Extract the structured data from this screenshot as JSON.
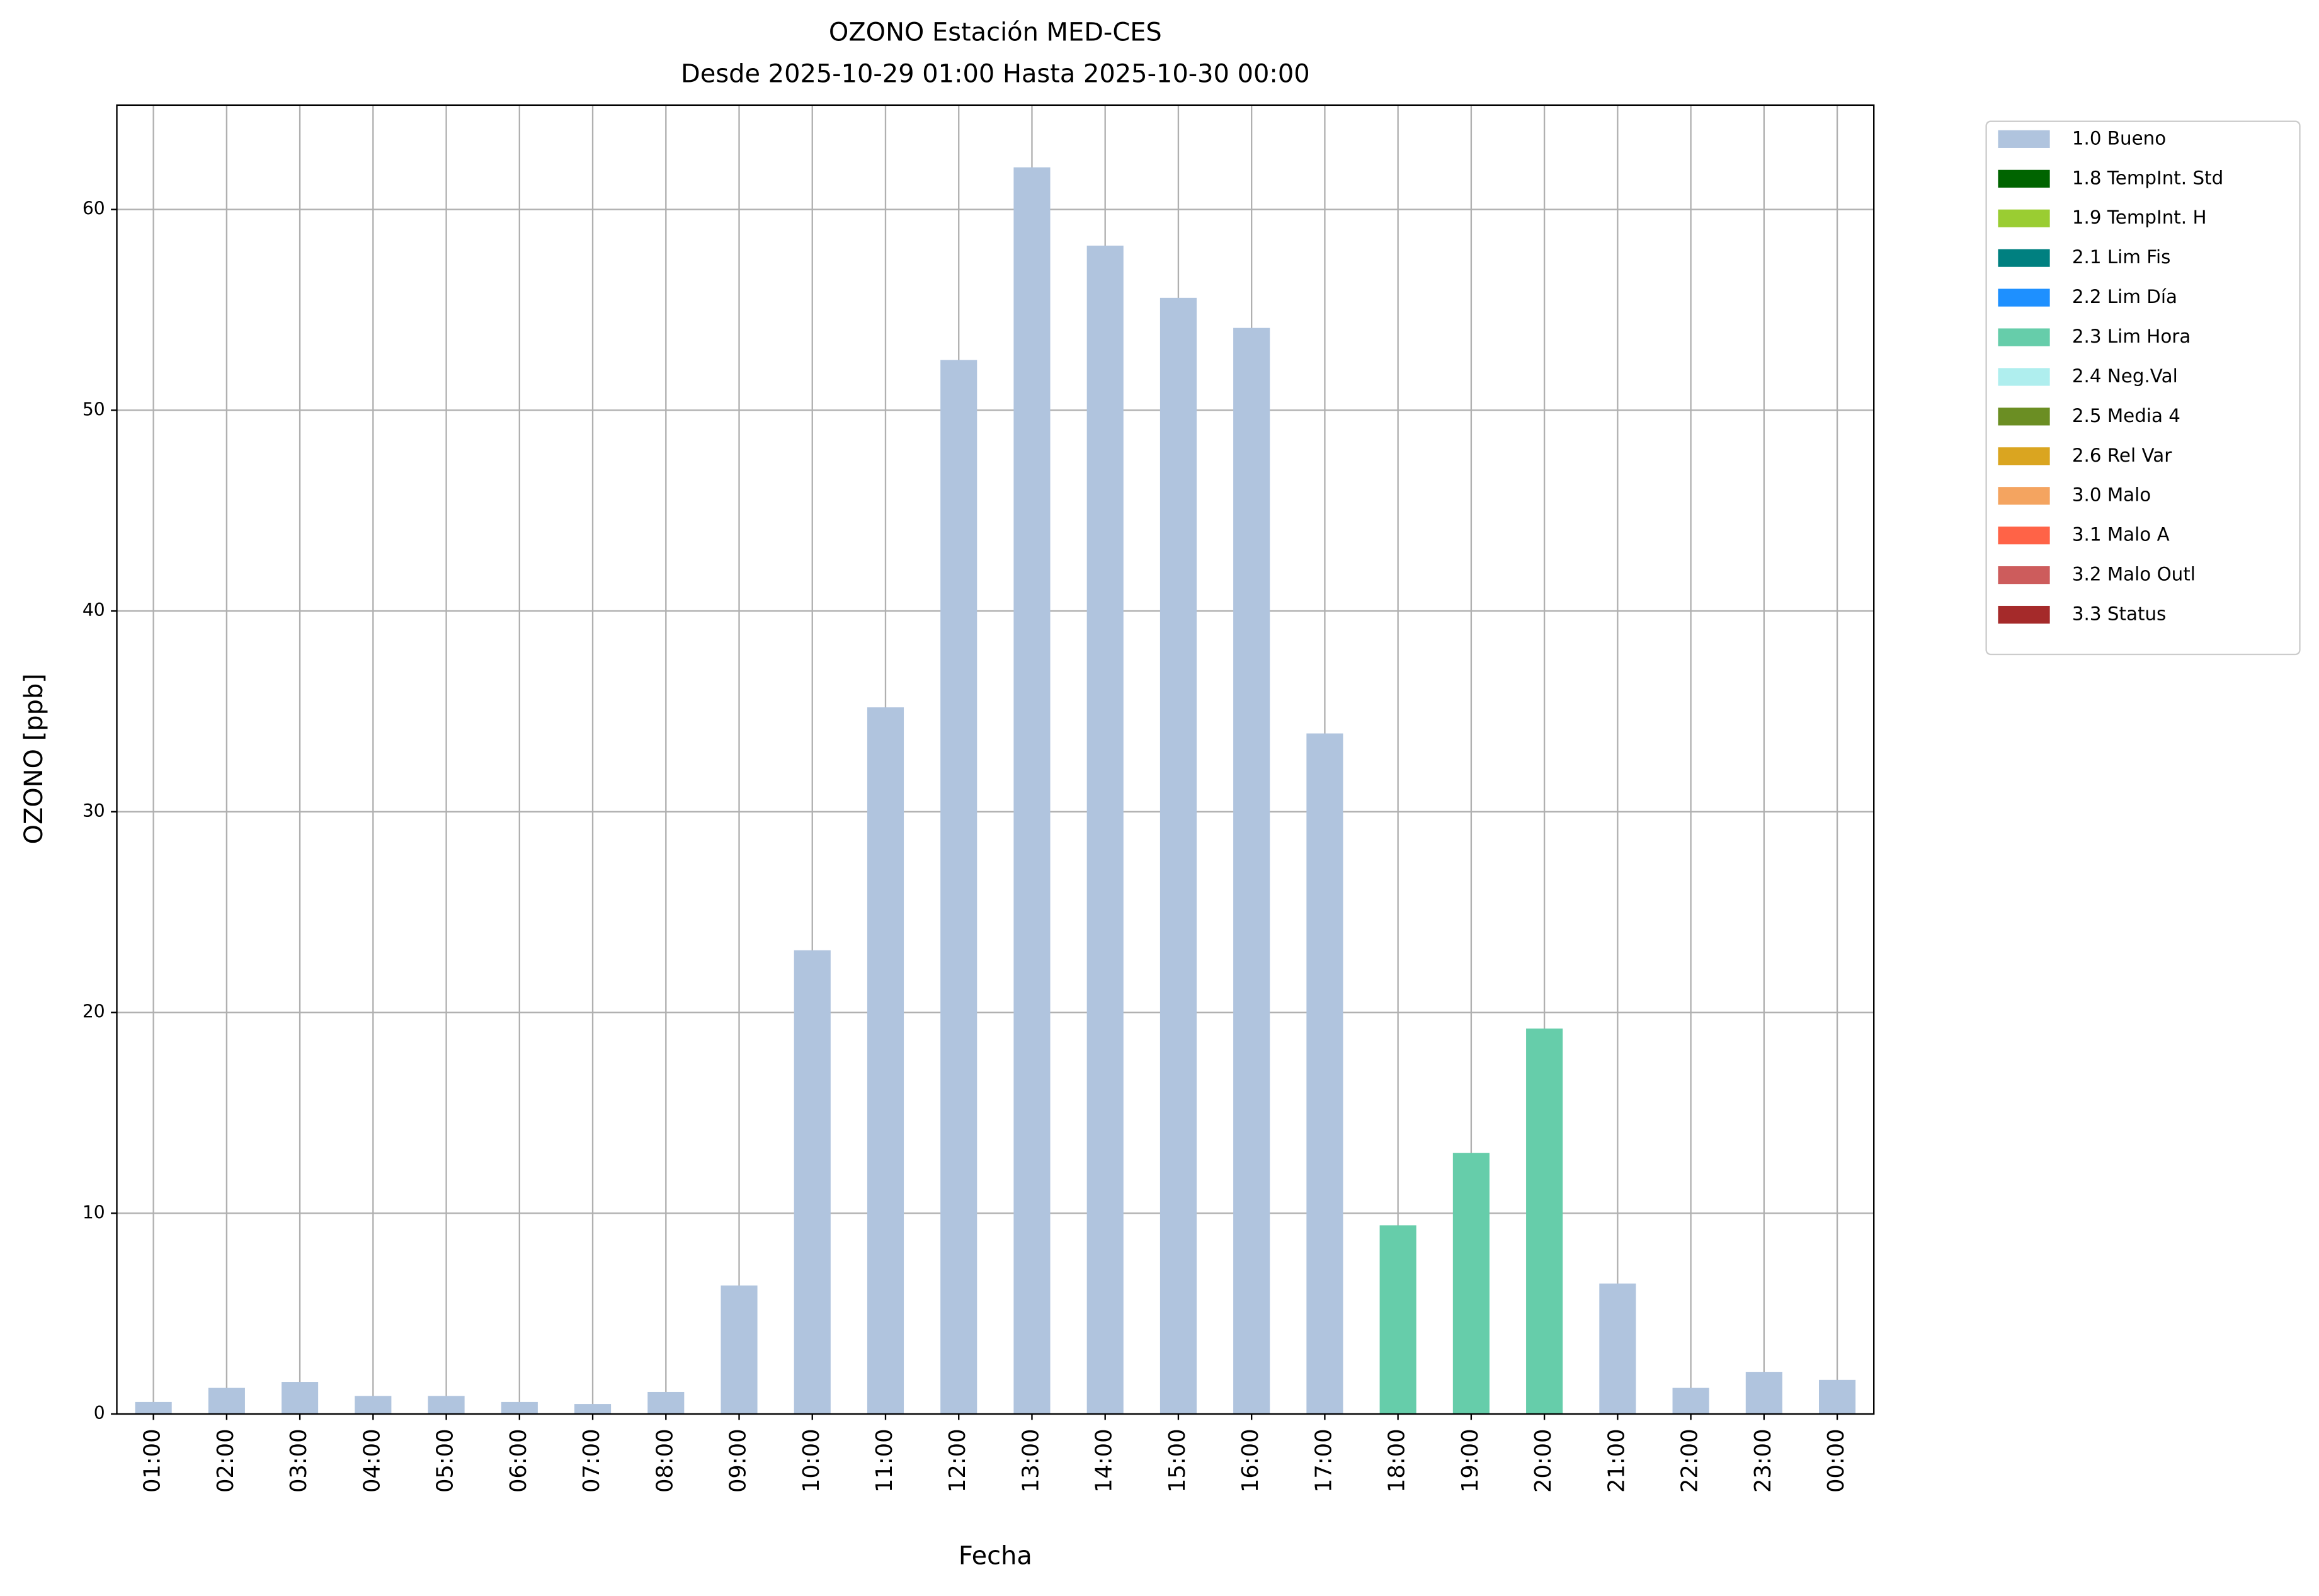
{
  "chart_data": {
    "type": "bar",
    "stacked": true,
    "title": "OZONO Estación MED-CES",
    "subtitle": "Desde 2025-10-29 01:00 Hasta 2025-10-30 00:00",
    "xlabel": "Fecha",
    "ylabel": "OZONO [ppb]",
    "categories": [
      "01:00",
      "02:00",
      "03:00",
      "04:00",
      "05:00",
      "06:00",
      "07:00",
      "08:00",
      "09:00",
      "10:00",
      "11:00",
      "12:00",
      "13:00",
      "14:00",
      "15:00",
      "16:00",
      "17:00",
      "18:00",
      "19:00",
      "20:00",
      "21:00",
      "22:00",
      "23:00",
      "00:00"
    ],
    "series": [
      {
        "name": "1.0 Bueno",
        "color": "#b0c4de",
        "values": [
          0.6,
          1.3,
          1.6,
          0.9,
          0.9,
          0.6,
          0.5,
          1.1,
          6.4,
          23.1,
          35.2,
          52.5,
          62.1,
          58.2,
          55.6,
          54.1,
          33.9,
          null,
          null,
          null,
          6.5,
          1.3,
          2.1,
          1.7
        ]
      },
      {
        "name": "1.8 TempInt. Std",
        "color": "#006400",
        "values": [
          null,
          null,
          null,
          null,
          null,
          null,
          null,
          null,
          null,
          null,
          null,
          null,
          null,
          null,
          null,
          null,
          null,
          null,
          null,
          null,
          null,
          null,
          null,
          null
        ]
      },
      {
        "name": "1.9 TempInt. H",
        "color": "#9acd32",
        "values": [
          null,
          null,
          null,
          null,
          null,
          null,
          null,
          null,
          null,
          null,
          null,
          null,
          null,
          null,
          null,
          null,
          null,
          null,
          null,
          null,
          null,
          null,
          null,
          null
        ]
      },
      {
        "name": "2.1 Lim Fis",
        "color": "#008080",
        "values": [
          null,
          null,
          null,
          null,
          null,
          null,
          null,
          null,
          null,
          null,
          null,
          null,
          null,
          null,
          null,
          null,
          null,
          null,
          null,
          null,
          null,
          null,
          null,
          null
        ]
      },
      {
        "name": "2.2 Lim Día",
        "color": "#1e90ff",
        "values": [
          null,
          null,
          null,
          null,
          null,
          null,
          null,
          null,
          null,
          null,
          null,
          null,
          null,
          null,
          null,
          null,
          null,
          null,
          null,
          null,
          null,
          null,
          null,
          null
        ]
      },
      {
        "name": "2.3 Lim Hora",
        "color": "#66cdaa",
        "values": [
          null,
          null,
          null,
          null,
          null,
          null,
          null,
          null,
          null,
          null,
          null,
          null,
          null,
          null,
          null,
          null,
          null,
          9.4,
          13.0,
          19.2,
          null,
          null,
          null,
          null
        ]
      },
      {
        "name": "2.4 Neg.Val",
        "color": "#afeeee",
        "values": [
          null,
          null,
          null,
          null,
          null,
          null,
          null,
          null,
          null,
          null,
          null,
          null,
          null,
          null,
          null,
          null,
          null,
          null,
          null,
          null,
          null,
          null,
          null,
          null
        ]
      },
      {
        "name": "2.5 Media 4",
        "color": "#6b8e23",
        "values": [
          null,
          null,
          null,
          null,
          null,
          null,
          null,
          null,
          null,
          null,
          null,
          null,
          null,
          null,
          null,
          null,
          null,
          null,
          null,
          null,
          null,
          null,
          null,
          null
        ]
      },
      {
        "name": "2.6 Rel Var",
        "color": "#daa520",
        "values": [
          null,
          null,
          null,
          null,
          null,
          null,
          null,
          null,
          null,
          null,
          null,
          null,
          null,
          null,
          null,
          null,
          null,
          null,
          null,
          null,
          null,
          null,
          null,
          null
        ]
      },
      {
        "name": "3.0 Malo",
        "color": "#f4a460",
        "values": [
          null,
          null,
          null,
          null,
          null,
          null,
          null,
          null,
          null,
          null,
          null,
          null,
          null,
          null,
          null,
          null,
          null,
          null,
          null,
          null,
          null,
          null,
          null,
          null
        ]
      },
      {
        "name": "3.1 Malo A",
        "color": "#ff6347",
        "values": [
          null,
          null,
          null,
          null,
          null,
          null,
          null,
          null,
          null,
          null,
          null,
          null,
          null,
          null,
          null,
          null,
          null,
          null,
          null,
          null,
          null,
          null,
          null,
          null
        ]
      },
      {
        "name": "3.2 Malo Outl",
        "color": "#cd5c5c",
        "values": [
          null,
          null,
          null,
          null,
          null,
          null,
          null,
          null,
          null,
          null,
          null,
          null,
          null,
          null,
          null,
          null,
          null,
          null,
          null,
          null,
          null,
          null,
          null,
          null
        ]
      },
      {
        "name": "3.3 Status",
        "color": "#a52a2a",
        "values": [
          null,
          null,
          null,
          null,
          null,
          null,
          null,
          null,
          null,
          null,
          null,
          null,
          null,
          null,
          null,
          null,
          null,
          null,
          null,
          null,
          null,
          null,
          null,
          null
        ]
      }
    ],
    "ylim": [
      0,
      65.2
    ],
    "yticks": [
      0,
      10,
      20,
      30,
      40,
      50,
      60
    ],
    "grid": true,
    "legend": "outside-upper-right"
  }
}
